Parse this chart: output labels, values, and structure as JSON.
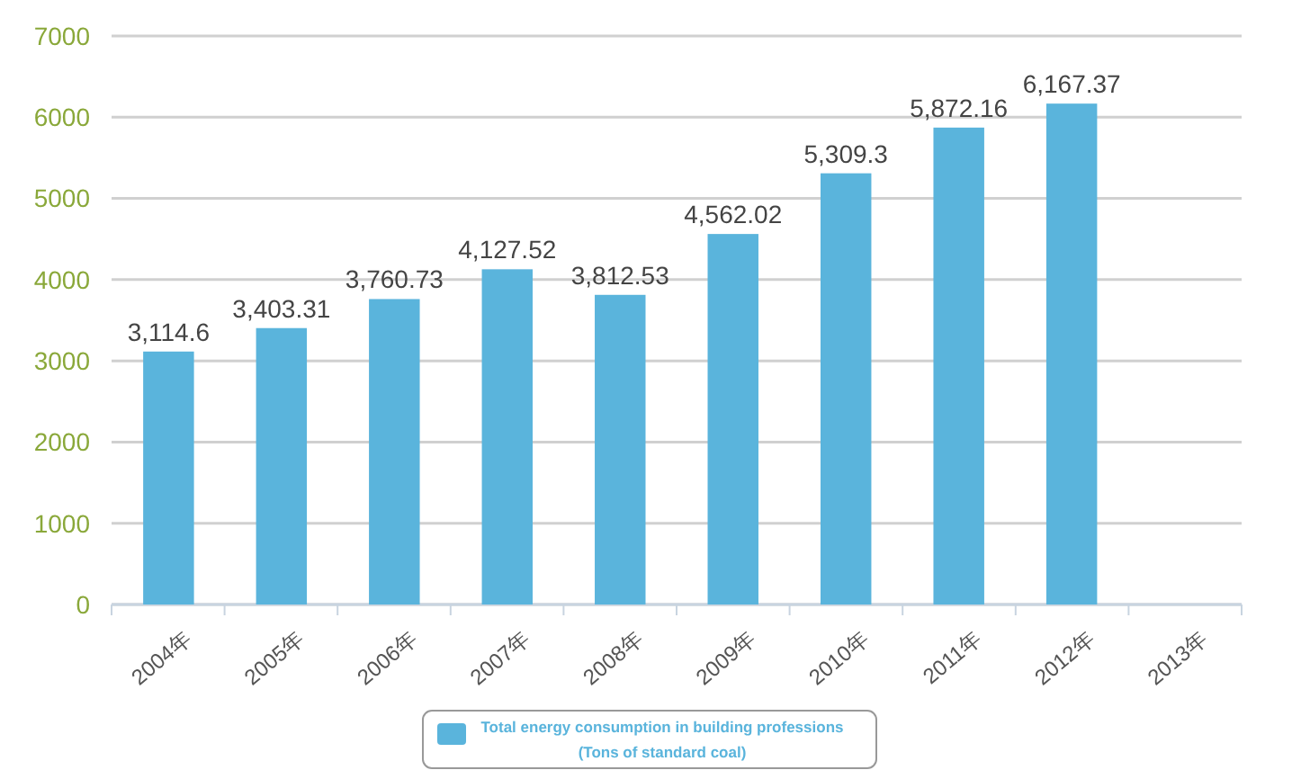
{
  "chart_data": {
    "type": "bar",
    "categories": [
      "2004年",
      "2005年",
      "2006年",
      "2007年",
      "2008年",
      "2009年",
      "2010年",
      "2011年",
      "2012年",
      "2013年"
    ],
    "series": [
      {
        "name": "Total energy consumption in building professions\n(Tons of standard coal)",
        "color": "#5ab4dc",
        "values": [
          3114.6,
          3403.31,
          3760.73,
          4127.52,
          3812.53,
          4562.02,
          5309.3,
          5872.16,
          6167.37,
          null
        ],
        "value_labels": [
          "3,114.6",
          "3,403.31",
          "3,760.73",
          "4,127.52",
          "3,812.53",
          "4,562.02",
          "5,309.3",
          "5,872.16",
          "6,167.37",
          null
        ]
      }
    ],
    "ylim": [
      0,
      7000
    ],
    "yticks": [
      0,
      1000,
      2000,
      3000,
      4000,
      5000,
      6000,
      7000
    ],
    "grid": "y",
    "legend": "bottom"
  }
}
